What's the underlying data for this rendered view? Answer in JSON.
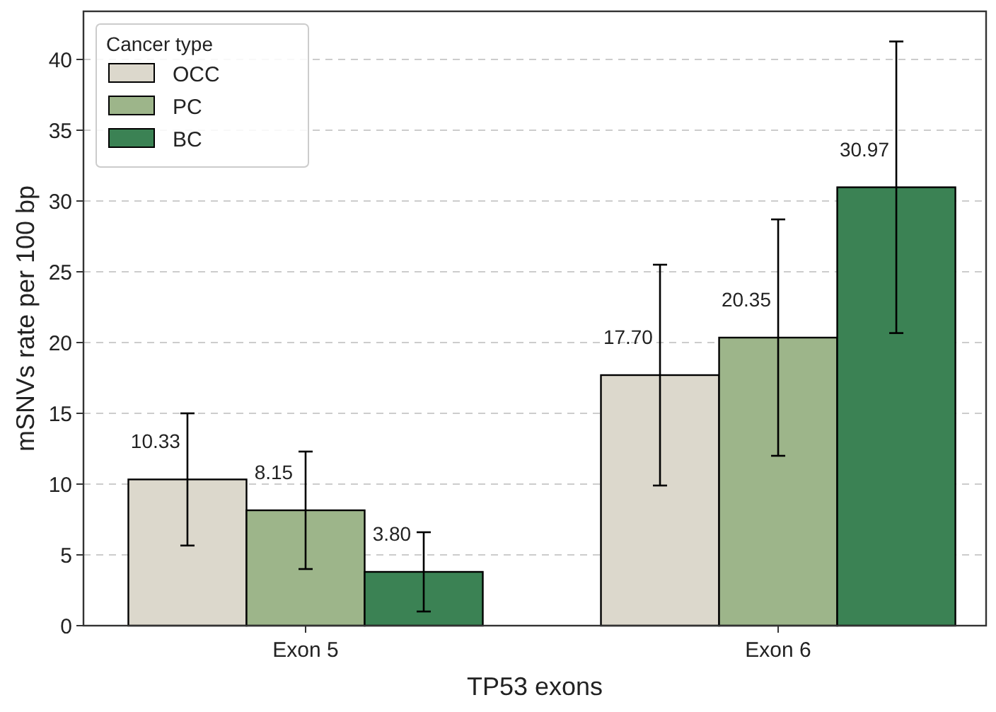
{
  "chart_data": {
    "type": "bar",
    "xlabel": "TP53 exons",
    "ylabel": "mSNVs rate per 100 bp",
    "legend_title": "Cancer type",
    "categories": [
      "Exon 5",
      "Exon 6"
    ],
    "series": [
      {
        "name": "OCC",
        "color": "#dcd8cc",
        "values": [
          10.33,
          17.7
        ],
        "value_labels": [
          "10.33",
          "17.70"
        ],
        "errors": [
          4.67,
          7.8
        ]
      },
      {
        "name": "PC",
        "color": "#9db58a",
        "values": [
          8.15,
          20.35
        ],
        "value_labels": [
          "8.15",
          "20.35"
        ],
        "errors": [
          4.15,
          8.35
        ]
      },
      {
        "name": "BC",
        "color": "#3b8254",
        "values": [
          3.8,
          30.97
        ],
        "value_labels": [
          "3.80",
          "30.97"
        ],
        "errors": [
          2.8,
          10.3
        ]
      }
    ],
    "ylim": [
      0,
      43.4
    ],
    "yticks": [
      0,
      5,
      10,
      15,
      20,
      25,
      30,
      35,
      40
    ],
    "grid": "y",
    "legend": "top left"
  }
}
